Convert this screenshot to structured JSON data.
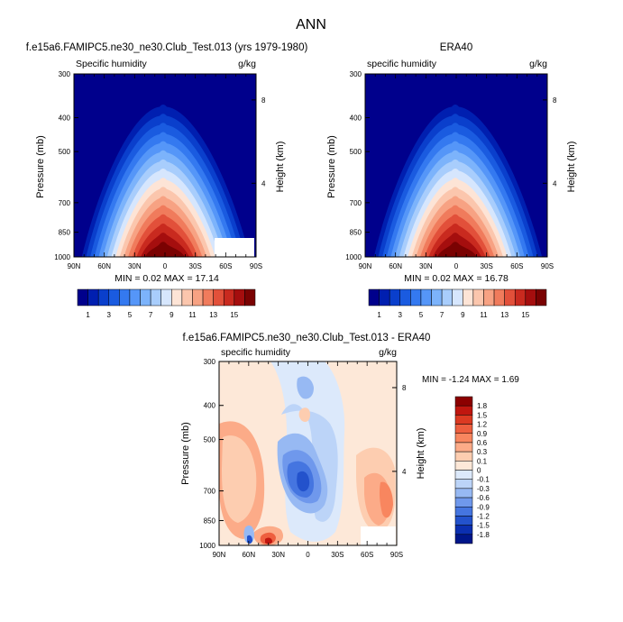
{
  "chart_data": [
    {
      "type": "contour",
      "figure_title": "ANN",
      "title": "f.e15a6.FAMIPC5.ne30_ne30.Club_Test.013 (yrs 1979-1980)",
      "left_label": "Specific humidity",
      "right_label": "g/kg",
      "ylabel": "Pressure (mb)",
      "ylabel_right": "Height (km)",
      "yticks": [
        "300",
        "400",
        "500",
        "700",
        "850",
        "1000"
      ],
      "yticks_right": [
        "8",
        "4"
      ],
      "xticks": [
        "90N",
        "60N",
        "30N",
        "0",
        "30S",
        "60S",
        "90S"
      ],
      "stats": "MIN =  0.02   MAX = 17.14",
      "colorbar_ticks": [
        "1",
        "3",
        "5",
        "7",
        "9",
        "11",
        "13",
        "15"
      ],
      "colors": [
        "#00008c",
        "#001fb0",
        "#0a3fcc",
        "#1a5be0",
        "#3479f0",
        "#5596f8",
        "#7cb3fb",
        "#a8cdfc",
        "#d6e6fd",
        "#fde4d6",
        "#fbc6ad",
        "#f7a283",
        "#f07b5c",
        "#e2503a",
        "#c92a1f",
        "#a50e0e",
        "#7a0202"
      ],
      "data_range": [
        0.02,
        17.14
      ],
      "masked_region": true
    },
    {
      "type": "contour",
      "title": "ERA40",
      "left_label": "specific humidity",
      "right_label": "g/kg",
      "ylabel": "Pressure (mb)",
      "ylabel_right": "Height (km)",
      "yticks": [
        "300",
        "400",
        "500",
        "700",
        "850",
        "1000"
      ],
      "yticks_right": [
        "8",
        "4"
      ],
      "xticks": [
        "90N",
        "60N",
        "30N",
        "0",
        "30S",
        "60S",
        "90S"
      ],
      "stats": "MIN =  0.02   MAX = 16.78",
      "colorbar_ticks": [
        "1",
        "3",
        "5",
        "7",
        "9",
        "11",
        "13",
        "15"
      ],
      "data_range": [
        0.02,
        16.78
      ]
    },
    {
      "type": "contour",
      "title": "f.e15a6.FAMIPC5.ne30_ne30.Club_Test.013 - ERA40",
      "left_label": "specific humidity",
      "right_label": "g/kg",
      "ylabel": "Pressure (mb)",
      "ylabel_right": "Height (km)",
      "yticks": [
        "300",
        "400",
        "500",
        "700",
        "850",
        "1000"
      ],
      "yticks_right": [
        "8",
        "4"
      ],
      "xticks": [
        "90N",
        "60N",
        "30N",
        "0",
        "30S",
        "60S",
        "90S"
      ],
      "stats": "MIN = -1.24   MAX =  1.69",
      "colorbar_ticks": [
        "1.8",
        "1.5",
        "1.2",
        "0.9",
        "0.6",
        "0.3",
        "0.1",
        "0",
        "-0.1",
        "-0.3",
        "-0.6",
        "-0.9",
        "-1.2",
        "-1.5",
        "-1.8"
      ],
      "colors": [
        "#8c0000",
        "#c0160f",
        "#dc3a22",
        "#ee5f3f",
        "#f8865f",
        "#fcab88",
        "#fdcdb0",
        "#fde8d8",
        "#dce9fb",
        "#bcd4f8",
        "#97b9f3",
        "#6f98ec",
        "#4575e0",
        "#2352cc",
        "#0b2fb0",
        "#00168a"
      ],
      "data_range": [
        -1.24,
        1.69
      ],
      "masked_region": true
    }
  ]
}
